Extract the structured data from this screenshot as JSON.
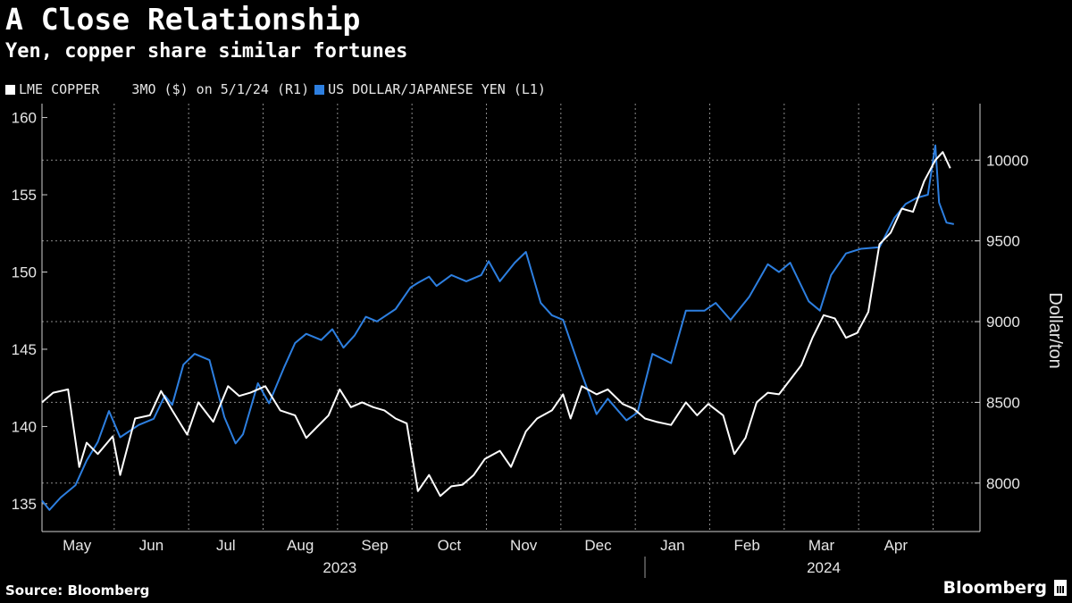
{
  "header": {
    "title": "A Close Relationship",
    "subtitle": "Yen, copper share similar fortunes"
  },
  "legend": {
    "copper": "LME COPPER    3MO ($) on 5/1/24 (R1)",
    "yen": "US DOLLAR/JAPANESE YEN (L1)"
  },
  "footer": {
    "source": "Source: Bloomberg",
    "brand": "Bloomberg"
  },
  "colors": {
    "copper": "#ffffff",
    "yen": "#2d7fe0",
    "grid": "#8a8a8a",
    "background": "#000000"
  },
  "chart_data": {
    "type": "line",
    "title": "A Close Relationship",
    "subtitle": "Yen, copper share similar fortunes",
    "x_unit": "months since 2023-04-17",
    "x_range": [
      0,
      12.6
    ],
    "month_ticks": [
      {
        "label": "May",
        "x": 0.47
      },
      {
        "label": "Jun",
        "x": 1.47
      },
      {
        "label": "Jul",
        "x": 2.47
      },
      {
        "label": "Aug",
        "x": 3.47
      },
      {
        "label": "Sep",
        "x": 4.47
      },
      {
        "label": "Oct",
        "x": 5.47
      },
      {
        "label": "Nov",
        "x": 6.47
      },
      {
        "label": "Dec",
        "x": 7.47
      },
      {
        "label": "Jan",
        "x": 8.47
      },
      {
        "label": "Feb",
        "x": 9.47
      },
      {
        "label": "Mar",
        "x": 10.47
      },
      {
        "label": "Apr",
        "x": 11.47
      }
    ],
    "year_labels": [
      {
        "label": "2023",
        "x": 4.0
      },
      {
        "label": "2024",
        "x": 10.5
      }
    ],
    "year_divider_x": 8.1,
    "left_axis": {
      "label": "",
      "range": [
        133.2,
        160.9
      ],
      "ticks": [
        135,
        140,
        145,
        150,
        155,
        160
      ]
    },
    "right_axis": {
      "label": "Dollar/ton",
      "range": [
        7700,
        10350
      ],
      "ticks": [
        8000,
        8500,
        9000,
        9500,
        10000
      ]
    },
    "series": [
      {
        "name": "US DOLLAR/JAPANESE YEN (L1)",
        "axis": "left",
        "x": [
          0.0,
          0.1,
          0.25,
          0.45,
          0.6,
          0.75,
          0.9,
          1.05,
          1.3,
          1.5,
          1.65,
          1.75,
          1.9,
          2.05,
          2.25,
          2.45,
          2.6,
          2.7,
          2.9,
          3.05,
          3.25,
          3.4,
          3.55,
          3.75,
          3.9,
          4.05,
          4.2,
          4.35,
          4.5,
          4.75,
          4.95,
          5.05,
          5.2,
          5.3,
          5.5,
          5.7,
          5.9,
          6.0,
          6.15,
          6.35,
          6.5,
          6.7,
          6.85,
          7.0,
          7.25,
          7.45,
          7.6,
          7.85,
          8.0,
          8.2,
          8.45,
          8.65,
          8.9,
          9.05,
          9.25,
          9.5,
          9.75,
          9.9,
          10.05,
          10.3,
          10.45,
          10.6,
          10.8,
          11.0,
          11.25,
          11.45,
          11.6,
          11.75,
          11.9,
          12.0,
          12.05,
          12.15,
          12.25
        ],
        "values": [
          135.2,
          134.6,
          135.4,
          136.2,
          137.8,
          139.0,
          141.0,
          139.3,
          140.1,
          140.5,
          142.0,
          141.4,
          144.0,
          144.7,
          144.3,
          140.6,
          138.9,
          139.5,
          142.8,
          141.5,
          143.8,
          145.4,
          146.0,
          145.6,
          146.3,
          145.1,
          145.9,
          147.1,
          146.8,
          147.6,
          149.0,
          149.3,
          149.7,
          149.1,
          149.8,
          149.4,
          149.8,
          150.7,
          149.4,
          150.6,
          151.3,
          148.0,
          147.2,
          146.9,
          143.4,
          140.8,
          141.8,
          140.4,
          140.9,
          144.7,
          144.1,
          147.5,
          147.5,
          148.0,
          146.9,
          148.4,
          150.5,
          150.0,
          150.6,
          148.1,
          147.5,
          149.8,
          151.2,
          151.5,
          151.6,
          153.5,
          154.4,
          154.8,
          155.0,
          158.2,
          154.5,
          153.2,
          153.1
        ]
      },
      {
        "name": "LME COPPER    3MO ($) on 5/1/24 (R1)",
        "axis": "right",
        "x": [
          0.0,
          0.15,
          0.35,
          0.5,
          0.6,
          0.75,
          0.95,
          1.05,
          1.25,
          1.45,
          1.6,
          1.75,
          1.95,
          2.1,
          2.3,
          2.5,
          2.65,
          2.8,
          3.0,
          3.2,
          3.4,
          3.55,
          3.7,
          3.85,
          4.0,
          4.15,
          4.3,
          4.45,
          4.6,
          4.75,
          4.9,
          5.05,
          5.2,
          5.35,
          5.5,
          5.65,
          5.8,
          5.95,
          6.15,
          6.3,
          6.5,
          6.65,
          6.85,
          7.0,
          7.1,
          7.25,
          7.45,
          7.6,
          7.8,
          7.95,
          8.1,
          8.25,
          8.45,
          8.65,
          8.8,
          8.95,
          9.15,
          9.3,
          9.45,
          9.6,
          9.75,
          9.9,
          10.05,
          10.2,
          10.35,
          10.5,
          10.65,
          10.8,
          10.95,
          11.1,
          11.25,
          11.4,
          11.55,
          11.7,
          11.85,
          12.0,
          12.1,
          12.2
        ],
        "values": [
          8500,
          8560,
          8580,
          8100,
          8250,
          8180,
          8290,
          8050,
          8400,
          8420,
          8570,
          8450,
          8300,
          8500,
          8380,
          8600,
          8540,
          8560,
          8600,
          8450,
          8420,
          8280,
          8350,
          8420,
          8580,
          8470,
          8500,
          8470,
          8450,
          8400,
          8370,
          7950,
          8050,
          7920,
          7980,
          7990,
          8050,
          8150,
          8200,
          8100,
          8320,
          8400,
          8450,
          8550,
          8400,
          8600,
          8550,
          8580,
          8490,
          8460,
          8400,
          8380,
          8360,
          8500,
          8420,
          8490,
          8420,
          8180,
          8280,
          8500,
          8560,
          8550,
          8640,
          8730,
          8900,
          9040,
          9020,
          8900,
          8930,
          9060,
          9480,
          9550,
          9700,
          9680,
          9870,
          10000,
          10050,
          9950
        ]
      }
    ]
  }
}
